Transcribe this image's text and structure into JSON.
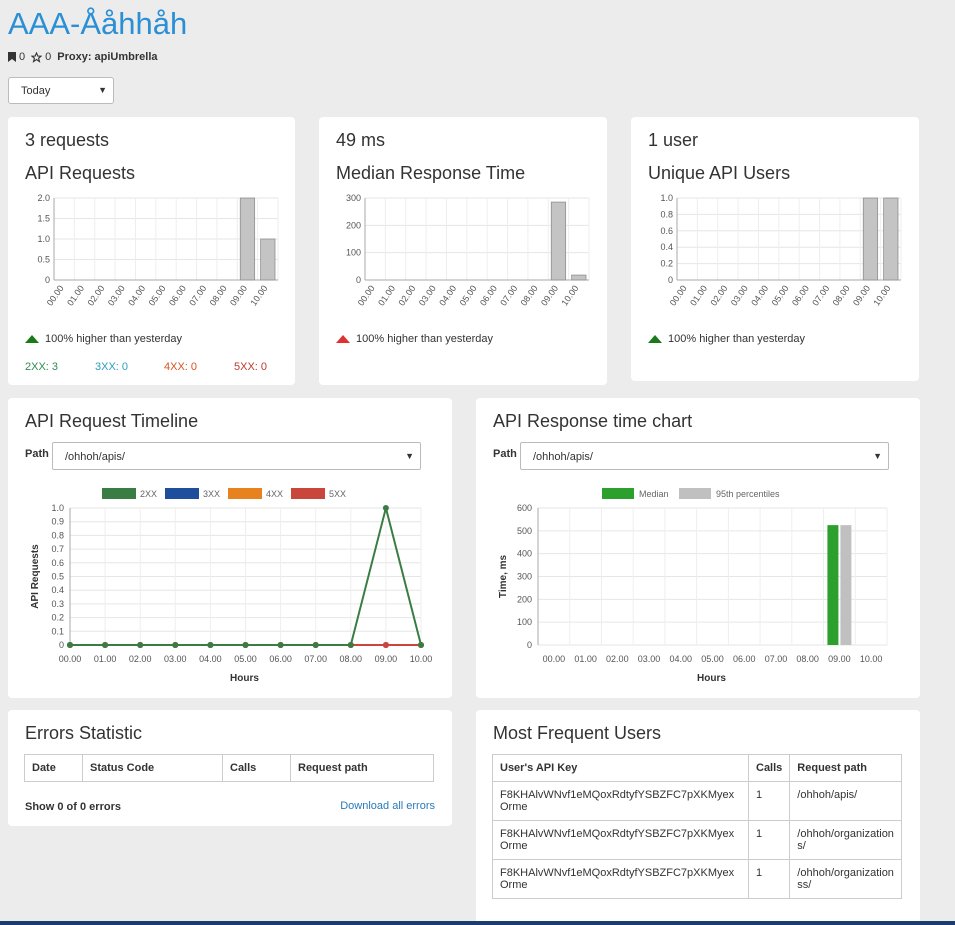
{
  "page": {
    "title": "AAA-Åå​hhåh",
    "bookmark_count": "0",
    "star_count": "0",
    "proxy_label": "Proxy: apiUmbrella",
    "period": "Today"
  },
  "hour_labels": [
    "00.00",
    "01.00",
    "02.00",
    "03.00",
    "04.00",
    "05.00",
    "06.00",
    "07.00",
    "08.00",
    "09.00",
    "10.00"
  ],
  "summary_cards": [
    {
      "value": "3 requests",
      "title": "API Requests",
      "trend": "100% higher than yesterday",
      "trend_color": "#1a7a1a",
      "chart_data": {
        "type": "bar",
        "categories": [
          "00.00",
          "01.00",
          "02.00",
          "03.00",
          "04.00",
          "05.00",
          "06.00",
          "07.00",
          "08.00",
          "09.00",
          "10.00"
        ],
        "values": [
          0,
          0,
          0,
          0,
          0,
          0,
          0,
          0,
          0,
          2,
          1
        ],
        "ylim": [
          0,
          2
        ],
        "yticks": [
          "0",
          "0.5",
          "1.0",
          "1.5",
          "2.0"
        ]
      }
    },
    {
      "value": "49 ms",
      "title": "Median Response Time",
      "trend": "100% higher than yesterday",
      "trend_color": "#e03030",
      "chart_data": {
        "type": "bar",
        "categories": [
          "00.00",
          "01.00",
          "02.00",
          "03.00",
          "04.00",
          "05.00",
          "06.00",
          "07.00",
          "08.00",
          "09.00",
          "10.00"
        ],
        "values": [
          0,
          0,
          0,
          0,
          0,
          0,
          0,
          0,
          0,
          285,
          18
        ],
        "ylim": [
          0,
          300
        ],
        "yticks": [
          "0",
          "100",
          "200",
          "300"
        ]
      }
    },
    {
      "value": "1 user",
      "title": "Unique API Users",
      "trend": "100% higher than yesterday",
      "trend_color": "#1a7a1a",
      "chart_data": {
        "type": "bar",
        "categories": [
          "00.00",
          "01.00",
          "02.00",
          "03.00",
          "04.00",
          "05.00",
          "06.00",
          "07.00",
          "08.00",
          "09.00",
          "10.00"
        ],
        "values": [
          0,
          0,
          0,
          0,
          0,
          0,
          0,
          0,
          0,
          1,
          1
        ],
        "ylim": [
          0,
          1
        ],
        "yticks": [
          "0",
          "0.2",
          "0.4",
          "0.6",
          "0.8",
          "1.0"
        ]
      }
    }
  ],
  "status_counts": [
    {
      "label": "2XX: 3",
      "color": "#2e8b57"
    },
    {
      "label": "3XX: 0",
      "color": "#2a9fc0"
    },
    {
      "label": "4XX: 0",
      "color": "#d9531e"
    },
    {
      "label": "5XX: 0",
      "color": "#c0392b"
    }
  ],
  "timeline": {
    "title": "API Request Timeline",
    "path_label": "Path",
    "path_value": "/ohhoh/apis/",
    "chart_data": {
      "type": "line",
      "x": [
        "00.00",
        "01.00",
        "02.00",
        "03.00",
        "04.00",
        "05.00",
        "06.00",
        "07.00",
        "08.00",
        "09.00",
        "10.00"
      ],
      "series": [
        {
          "name": "2XX",
          "color": "#3a7d44",
          "values": [
            0,
            0,
            0,
            0,
            0,
            0,
            0,
            0,
            0,
            1,
            0
          ]
        },
        {
          "name": "3XX",
          "color": "#1f4e9c",
          "values": [
            0,
            0,
            0,
            0,
            0,
            0,
            0,
            0,
            0,
            0,
            0
          ]
        },
        {
          "name": "4XX",
          "color": "#e8821e",
          "values": [
            0,
            0,
            0,
            0,
            0,
            0,
            0,
            0,
            0,
            0,
            0
          ]
        },
        {
          "name": "5XX",
          "color": "#c9463d",
          "values": [
            0,
            0,
            0,
            0,
            0,
            0,
            0,
            0,
            0,
            0,
            0
          ]
        }
      ],
      "ylim": [
        0,
        1
      ],
      "yticks": [
        "0",
        "0.1",
        "0.2",
        "0.3",
        "0.4",
        "0.5",
        "0.6",
        "0.7",
        "0.8",
        "0.9",
        "1.0"
      ],
      "xlabel": "Hours",
      "ylabel": "API Requests",
      "legend": "top"
    }
  },
  "response_chart": {
    "title": "API Response time chart",
    "path_label": "Path",
    "path_value": "/ohhoh/apis/",
    "chart_data": {
      "type": "bar",
      "categories": [
        "00.00",
        "01.00",
        "02.00",
        "03.00",
        "04.00",
        "05.00",
        "06.00",
        "07.00",
        "08.00",
        "09.00",
        "10.00"
      ],
      "series": [
        {
          "name": "Median",
          "color": "#2ca02c",
          "values": [
            0,
            0,
            0,
            0,
            0,
            0,
            0,
            0,
            0,
            525,
            0
          ]
        },
        {
          "name": "95th percentiles",
          "color": "#c0c0c0",
          "values": [
            0,
            0,
            0,
            0,
            0,
            0,
            0,
            0,
            0,
            525,
            0
          ]
        }
      ],
      "ylim": [
        0,
        600
      ],
      "yticks": [
        "0",
        "100",
        "200",
        "300",
        "400",
        "500",
        "600"
      ],
      "xlabel": "Hours",
      "ylabel": "Time, ms",
      "legend": "top"
    }
  },
  "errors": {
    "title": "Errors Statistic",
    "columns": [
      "Date",
      "Status Code",
      "Calls",
      "Request path"
    ],
    "summary": "Show 0 of 0 errors",
    "download_label": "Download all errors"
  },
  "users": {
    "title": "Most Frequent Users",
    "columns": [
      "User's API Key",
      "Calls",
      "Request path"
    ],
    "rows": [
      {
        "key_line1": "F8KHAlvWNvf1eMQoxRdtyfYSBZFC7pXKMyex",
        "key_line2": "Orme",
        "calls": "1",
        "path_line1": "/ohhoh/apis/",
        "path_line2": ""
      },
      {
        "key_line1": "F8KHAlvWNvf1eMQoxRdtyfYSBZFC7pXKMyex",
        "key_line2": "Orme",
        "calls": "1",
        "path_line1": "/ohhoh/organization",
        "path_line2": "s/"
      },
      {
        "key_line1": "F8KHAlvWNvf1eMQoxRdtyfYSBZFC7pXKMyex",
        "key_line2": "Orme",
        "calls": "1",
        "path_line1": "/ohhoh/organization",
        "path_line2": "ss/"
      }
    ]
  }
}
